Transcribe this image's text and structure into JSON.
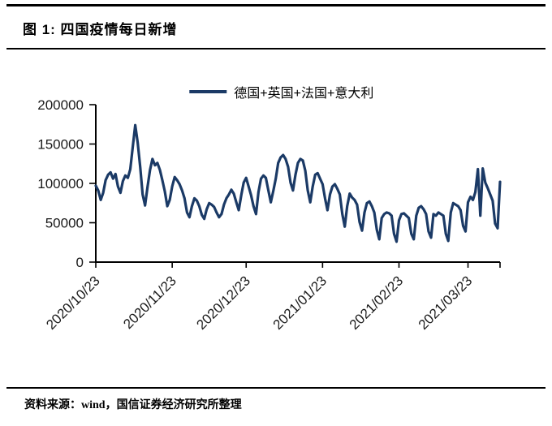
{
  "title": "图 1: 四国疫情每日新增",
  "source": "资料来源：wind，国信证券经济研究所整理",
  "legend": {
    "label": "德国+英国+法国+意大利"
  },
  "colors": {
    "line": "#1b3a66",
    "axis": "#000000",
    "text": "#1a1a1a"
  },
  "chart_data": {
    "type": "line",
    "title": "四国疫情每日新增",
    "series_name": "德国+英国+法国+意大利",
    "start_date": "2020/10/23",
    "frequency": "daily",
    "ylim": [
      0,
      200000
    ],
    "y_ticks": [
      0,
      50000,
      100000,
      150000,
      200000
    ],
    "x_ticks": [
      {
        "label": "2020/10/23",
        "day": 0
      },
      {
        "label": "2020/11/23",
        "day": 31
      },
      {
        "label": "2020/12/23",
        "day": 61
      },
      {
        "label": "2021/01/23",
        "day": 92
      },
      {
        "label": "2021/02/23",
        "day": 123
      },
      {
        "label": "2021/03/23",
        "day": 151
      }
    ],
    "grid": false,
    "legend_position": "top-center",
    "values": [
      97000,
      91000,
      79000,
      88000,
      104000,
      111000,
      114000,
      106000,
      112000,
      96000,
      88000,
      103000,
      110000,
      107000,
      118000,
      146000,
      174000,
      152000,
      121000,
      86000,
      72000,
      96000,
      117000,
      131000,
      123000,
      126000,
      117000,
      104000,
      90000,
      71000,
      79000,
      96000,
      108000,
      104000,
      99000,
      91000,
      81000,
      63000,
      57000,
      71000,
      81000,
      78000,
      71000,
      60000,
      55000,
      67000,
      75000,
      73000,
      70000,
      63000,
      57000,
      61000,
      73000,
      81000,
      86000,
      92000,
      87000,
      76000,
      66000,
      85000,
      101000,
      107000,
      96000,
      85000,
      71000,
      61000,
      89000,
      106000,
      110000,
      107000,
      91000,
      76000,
      90000,
      106000,
      126000,
      133000,
      136000,
      131000,
      121000,
      101000,
      91000,
      111000,
      126000,
      131000,
      129000,
      116000,
      91000,
      76000,
      96000,
      111000,
      113000,
      106000,
      99000,
      81000,
      66000,
      86000,
      96000,
      99000,
      93000,
      86000,
      61000,
      45000,
      71000,
      87000,
      82000,
      79000,
      73000,
      51000,
      40000,
      63000,
      75000,
      77000,
      71000,
      63000,
      41000,
      29000,
      56000,
      61000,
      63000,
      62000,
      59000,
      36000,
      26000,
      53000,
      61000,
      62000,
      59000,
      56000,
      36000,
      29000,
      59000,
      69000,
      71000,
      67000,
      61000,
      39000,
      31000,
      61000,
      59000,
      63000,
      61000,
      59000,
      36000,
      27000,
      63000,
      75000,
      73000,
      71000,
      66000,
      46000,
      39000,
      76000,
      83000,
      79000,
      89000,
      118000,
      59000,
      119000,
      101000,
      94000,
      86000,
      78000,
      49000,
      43000,
      102000
    ]
  }
}
